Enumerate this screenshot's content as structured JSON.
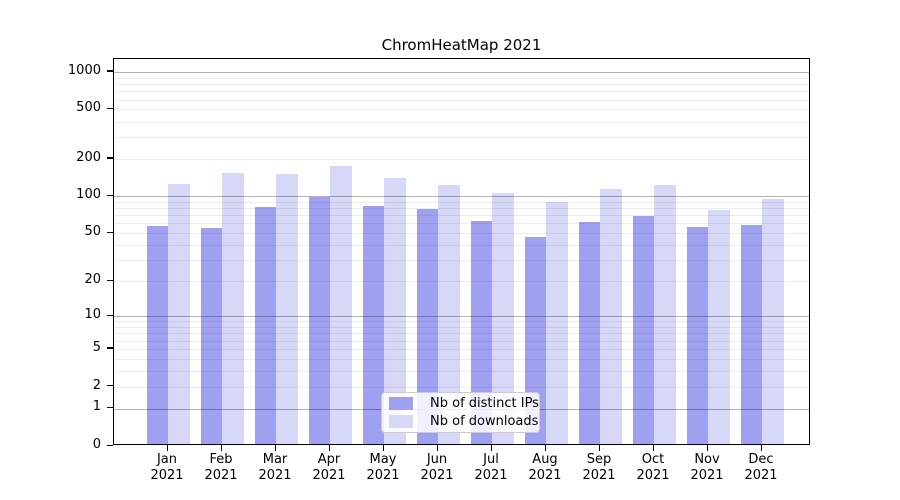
{
  "chart_data": {
    "type": "bar",
    "title": "ChromHeatMap 2021",
    "categories": [
      "Jan 2021",
      "Feb 2021",
      "Mar 2021",
      "Apr 2021",
      "May 2021",
      "Jun 2021",
      "Jul 2021",
      "Aug 2021",
      "Sep 2021",
      "Oct 2021",
      "Nov 2021",
      "Dec 2021"
    ],
    "series": [
      {
        "name": "Nb of distinct IPs",
        "color": "#a0a0f0",
        "values": [
          55,
          53,
          78,
          94,
          80,
          76,
          61,
          45,
          59,
          66,
          54,
          56
        ]
      },
      {
        "name": "Nb of downloads",
        "color": "#d7d7f7",
        "values": [
          121,
          149,
          146,
          170,
          135,
          119,
          102,
          87,
          111,
          119,
          75,
          91
        ]
      }
    ],
    "y_scale": "symlog",
    "y_ticks": [
      0,
      1,
      2,
      5,
      10,
      20,
      50,
      100,
      200,
      500,
      1000
    ],
    "ylim": [
      0,
      1270
    ],
    "xlabel": "",
    "ylabel": "",
    "grid": "on",
    "gridline_major_values": [
      1,
      10,
      100,
      1000
    ],
    "legend_position": "lower center",
    "colors": {
      "background": "#ffffff",
      "spine": "#000000",
      "major_grid": "#b3b3b3",
      "minor_grid": "#ececec"
    }
  }
}
